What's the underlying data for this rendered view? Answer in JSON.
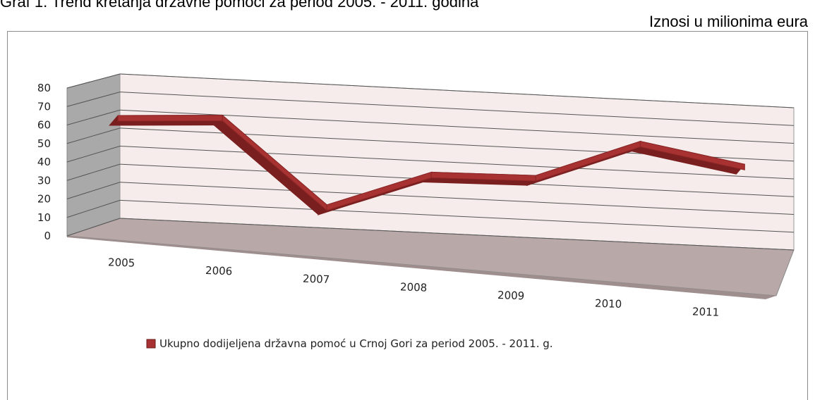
{
  "caption": "Graf 1. Trend kretanja državne pomoći za period 2005. - 2011. godina",
  "units_label": "Iznosi u milionima eura",
  "chart_data": {
    "type": "line",
    "title": "",
    "xlabel": "",
    "ylabel": "",
    "categories": [
      "2005",
      "2006",
      "2007",
      "2008",
      "2009",
      "2010",
      "2011"
    ],
    "series": [
      {
        "name": "Ukupno dodijeljena državna pomoć u Crnoj Gori za period 2005. - 2011. g.",
        "values": [
          62,
          65,
          18,
          39,
          40,
          62,
          52
        ]
      }
    ],
    "ylim": [
      0,
      80
    ],
    "yticks": [
      "0",
      "10",
      "20",
      "30",
      "40",
      "50",
      "60",
      "70",
      "80"
    ],
    "grid": true,
    "legend_position": "bottom",
    "style": "3d-line",
    "colors": {
      "series": "#a83232",
      "series_dark": "#7a1f1f",
      "back_wall": "#f6ecec",
      "side_wall": "#a9a9a9",
      "floor": "#b8a8a8",
      "grid": "#555555"
    }
  }
}
